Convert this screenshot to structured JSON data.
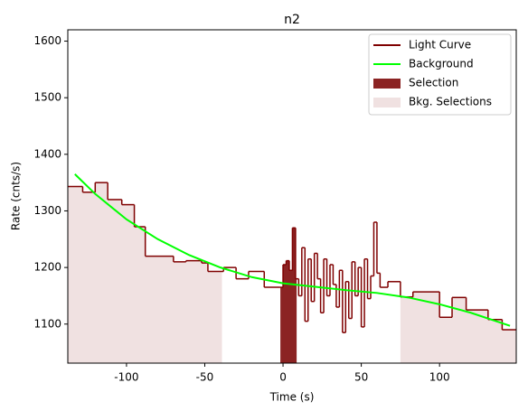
{
  "chart_data": {
    "type": "step",
    "title": "n2",
    "x_label": "Time (s)",
    "y_label": "Rate (cnts/s)",
    "xlim": [
      -137.5,
      149
    ],
    "ylim": [
      1031,
      1620
    ],
    "xticks": [
      -100,
      -50,
      0,
      50,
      100
    ],
    "yticks": [
      1100,
      1200,
      1300,
      1400,
      1500,
      1600
    ],
    "legend": "upper right",
    "series": [
      {
        "name": "Light Curve",
        "color": "#7f0000",
        "bins": [
          -137.5,
          -128,
          -120,
          -112,
          -103,
          -95,
          -88,
          -70,
          -62,
          -52,
          -48,
          -38,
          -30,
          -22,
          -12,
          -2,
          0,
          2,
          4,
          6,
          8,
          10,
          12,
          14,
          16,
          18,
          20,
          22,
          24,
          26,
          28,
          30,
          32,
          34,
          36,
          38,
          40,
          42,
          44,
          46,
          48,
          50,
          52,
          54,
          56,
          58,
          60,
          62,
          67,
          75,
          83,
          100,
          108,
          117,
          131,
          140,
          149
        ],
        "values": [
          1343,
          1333,
          1350,
          1320,
          1311,
          1272,
          1220,
          1210,
          1212,
          1208,
          1193,
          1200,
          1180,
          1193,
          1165,
          1165,
          1205,
          1212,
          1195,
          1270,
          1180,
          1150,
          1235,
          1105,
          1215,
          1140,
          1225,
          1180,
          1120,
          1215,
          1150,
          1205,
          1170,
          1130,
          1195,
          1085,
          1175,
          1110,
          1210,
          1150,
          1200,
          1095,
          1215,
          1145,
          1185,
          1280,
          1190,
          1165,
          1175,
          1148,
          1157,
          1112,
          1147,
          1125,
          1108,
          1090
        ]
      },
      {
        "name": "Background",
        "color": "#00ff00",
        "x": [
          -133,
          -120,
          -100,
          -80,
          -60,
          -40,
          -20,
          0,
          20,
          40,
          60,
          80,
          100,
          120,
          145
        ],
        "values": [
          1365,
          1330,
          1285,
          1250,
          1222,
          1200,
          1183,
          1172,
          1166,
          1160,
          1155,
          1147,
          1135,
          1120,
          1097
        ]
      }
    ],
    "selection": {
      "name": "Selection",
      "color": "#8b2323",
      "range": [
        -1.7,
        8.7
      ]
    },
    "bkg_selections": {
      "name": "Bkg. Selections",
      "color": "#f0e1e1",
      "ranges": [
        [
          -137.5,
          -39
        ],
        [
          75,
          149
        ]
      ]
    }
  }
}
